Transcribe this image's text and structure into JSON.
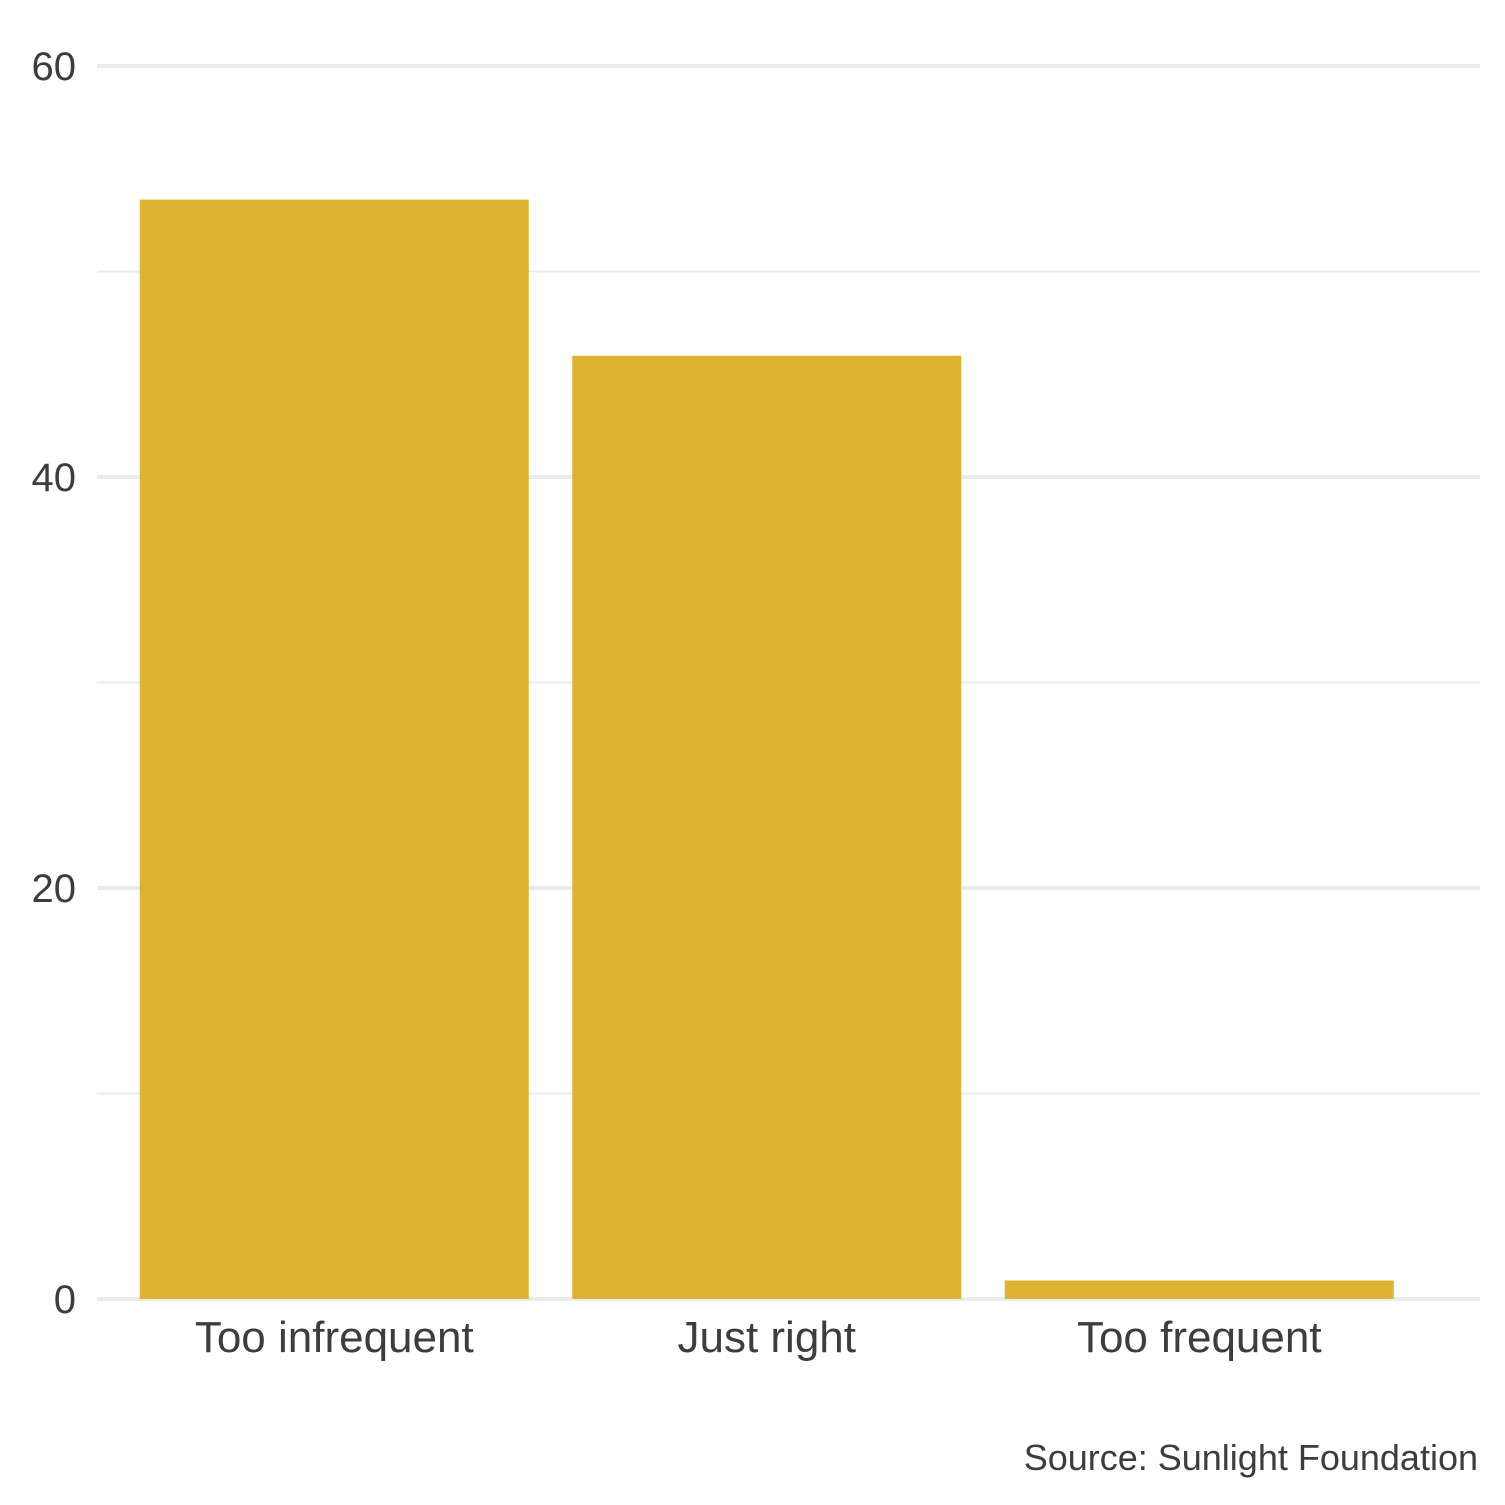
{
  "chart_data": {
    "type": "bar",
    "categories": [
      "Too infrequent",
      "Just right",
      "Too frequent"
    ],
    "values": [
      53.5,
      45.9,
      0.9
    ],
    "ylim": [
      0,
      60
    ],
    "y_ticks": [
      0,
      20,
      40,
      60
    ],
    "y_minor_ticks": [
      10,
      30,
      50
    ],
    "title": "",
    "xlabel": "",
    "ylabel": "",
    "caption": "Source: Sunlight Foundation",
    "grid": true,
    "legend": "none",
    "colors": {
      "bar": "#dcb332",
      "grid": "#ebebeb",
      "text": "#3d3d3d",
      "background": "#ffffff"
    }
  }
}
